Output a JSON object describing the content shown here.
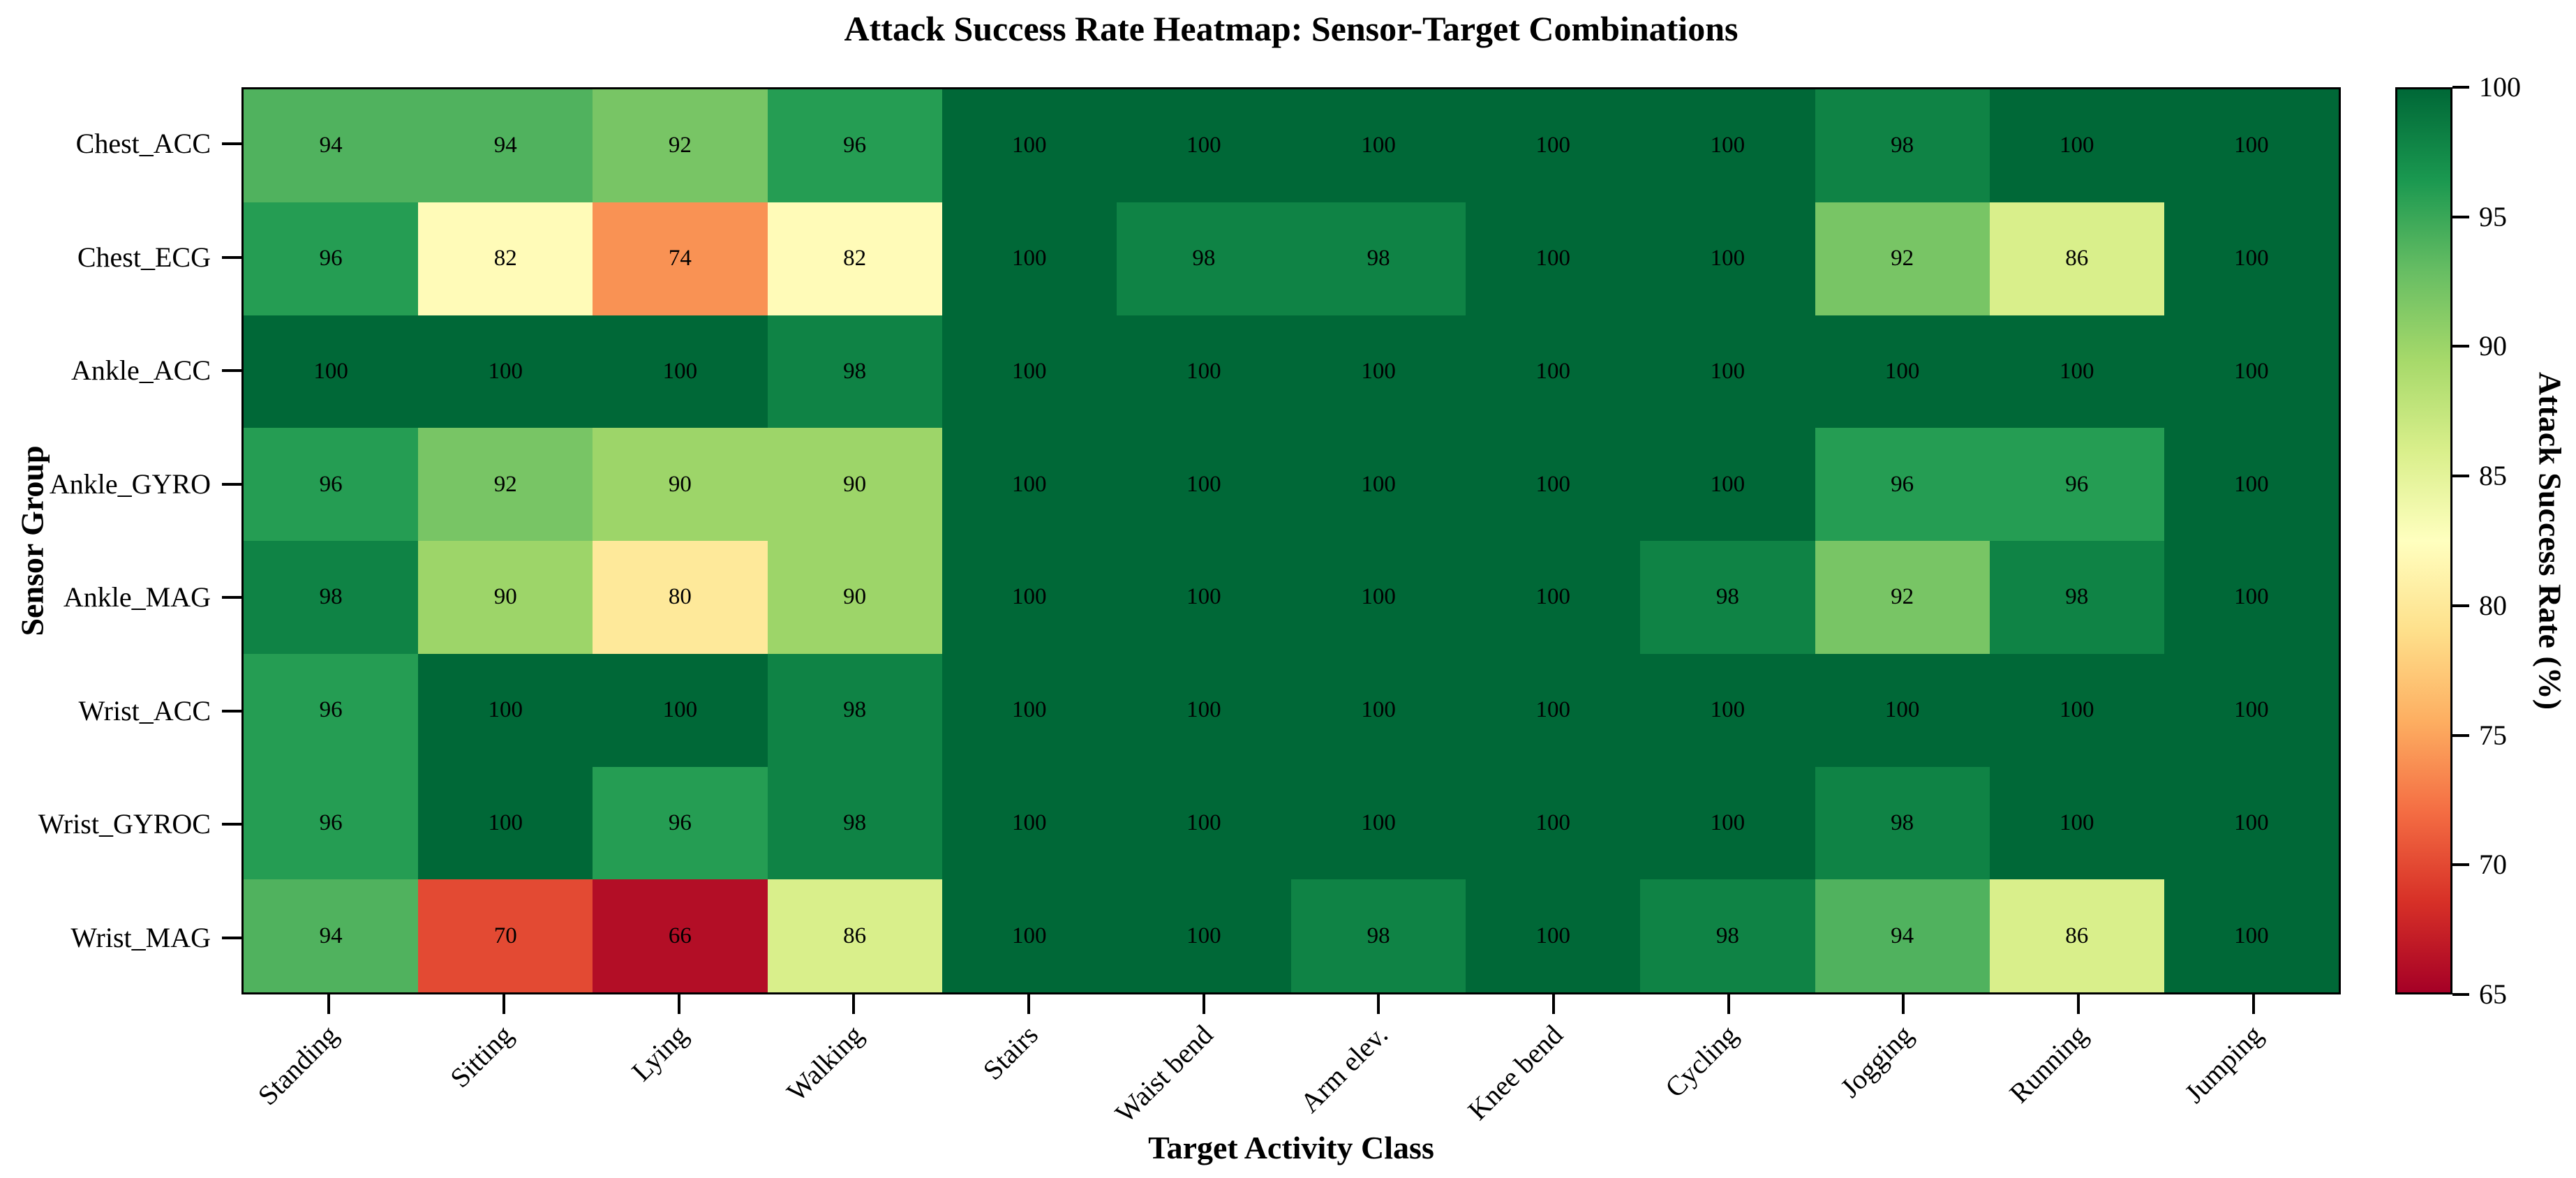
{
  "chart_data": {
    "type": "heatmap",
    "title": "Attack Success Rate Heatmap: Sensor-Target Combinations",
    "xlabel": "Target Activity Class",
    "ylabel": "Sensor Group",
    "colorbar_label": "Attack Success Rate (%)",
    "x_categories": [
      "Standing",
      "Sitting",
      "Lying",
      "Walking",
      "Stairs",
      "Waist bend",
      "Arm elev.",
      "Knee bend",
      "Cycling",
      "Jogging",
      "Running",
      "Jumping"
    ],
    "y_categories": [
      "Chest_ACC",
      "Chest_ECG",
      "Ankle_ACC",
      "Ankle_GYRO",
      "Ankle_MAG",
      "Wrist_ACC",
      "Wrist_GYROC",
      "Wrist_MAG"
    ],
    "values": [
      [
        94,
        94,
        92,
        96,
        100,
        100,
        100,
        100,
        100,
        98,
        100,
        100
      ],
      [
        96,
        82,
        74,
        82,
        100,
        98,
        98,
        100,
        100,
        92,
        86,
        100
      ],
      [
        100,
        100,
        100,
        98,
        100,
        100,
        100,
        100,
        100,
        100,
        100,
        100
      ],
      [
        96,
        92,
        90,
        90,
        100,
        100,
        100,
        100,
        100,
        96,
        96,
        100
      ],
      [
        98,
        90,
        80,
        90,
        100,
        100,
        100,
        100,
        98,
        92,
        98,
        100
      ],
      [
        96,
        100,
        100,
        98,
        100,
        100,
        100,
        100,
        100,
        100,
        100,
        100
      ],
      [
        96,
        100,
        96,
        98,
        100,
        100,
        100,
        100,
        100,
        98,
        100,
        100
      ],
      [
        94,
        70,
        66,
        86,
        100,
        100,
        98,
        100,
        98,
        94,
        86,
        100
      ]
    ],
    "vmin": 65,
    "vmax": 100,
    "colorbar_ticks": [
      65,
      70,
      75,
      80,
      85,
      90,
      95,
      100
    ],
    "grid": false,
    "annotation_color": "#000000",
    "colormap": {
      "name": "RdYlGn",
      "stops": [
        "#a50026",
        "#d73027",
        "#f46d43",
        "#fdae61",
        "#fee08b",
        "#ffffbf",
        "#d9ef8b",
        "#a6d96a",
        "#66bd63",
        "#1a9850",
        "#006837"
      ]
    }
  }
}
